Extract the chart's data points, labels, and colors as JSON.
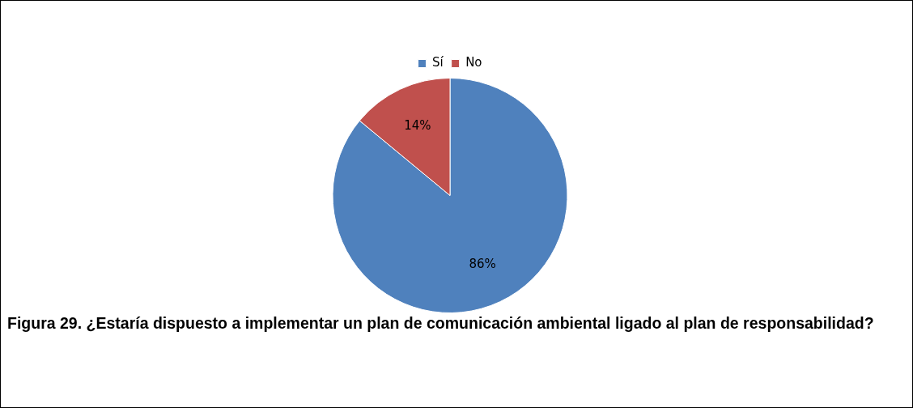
{
  "chart_data": {
    "type": "pie",
    "title": "Figura 29.  ¿Estaría dispuesto a implementar un plan de comunicación ambiental ligado al plan de responsabilidad?",
    "categories": [
      "Sí",
      "No"
    ],
    "values": [
      86,
      14
    ],
    "colors": [
      "#4f81bd",
      "#c0504d"
    ],
    "value_labels": [
      "86%",
      "14%"
    ],
    "legend": "top"
  }
}
